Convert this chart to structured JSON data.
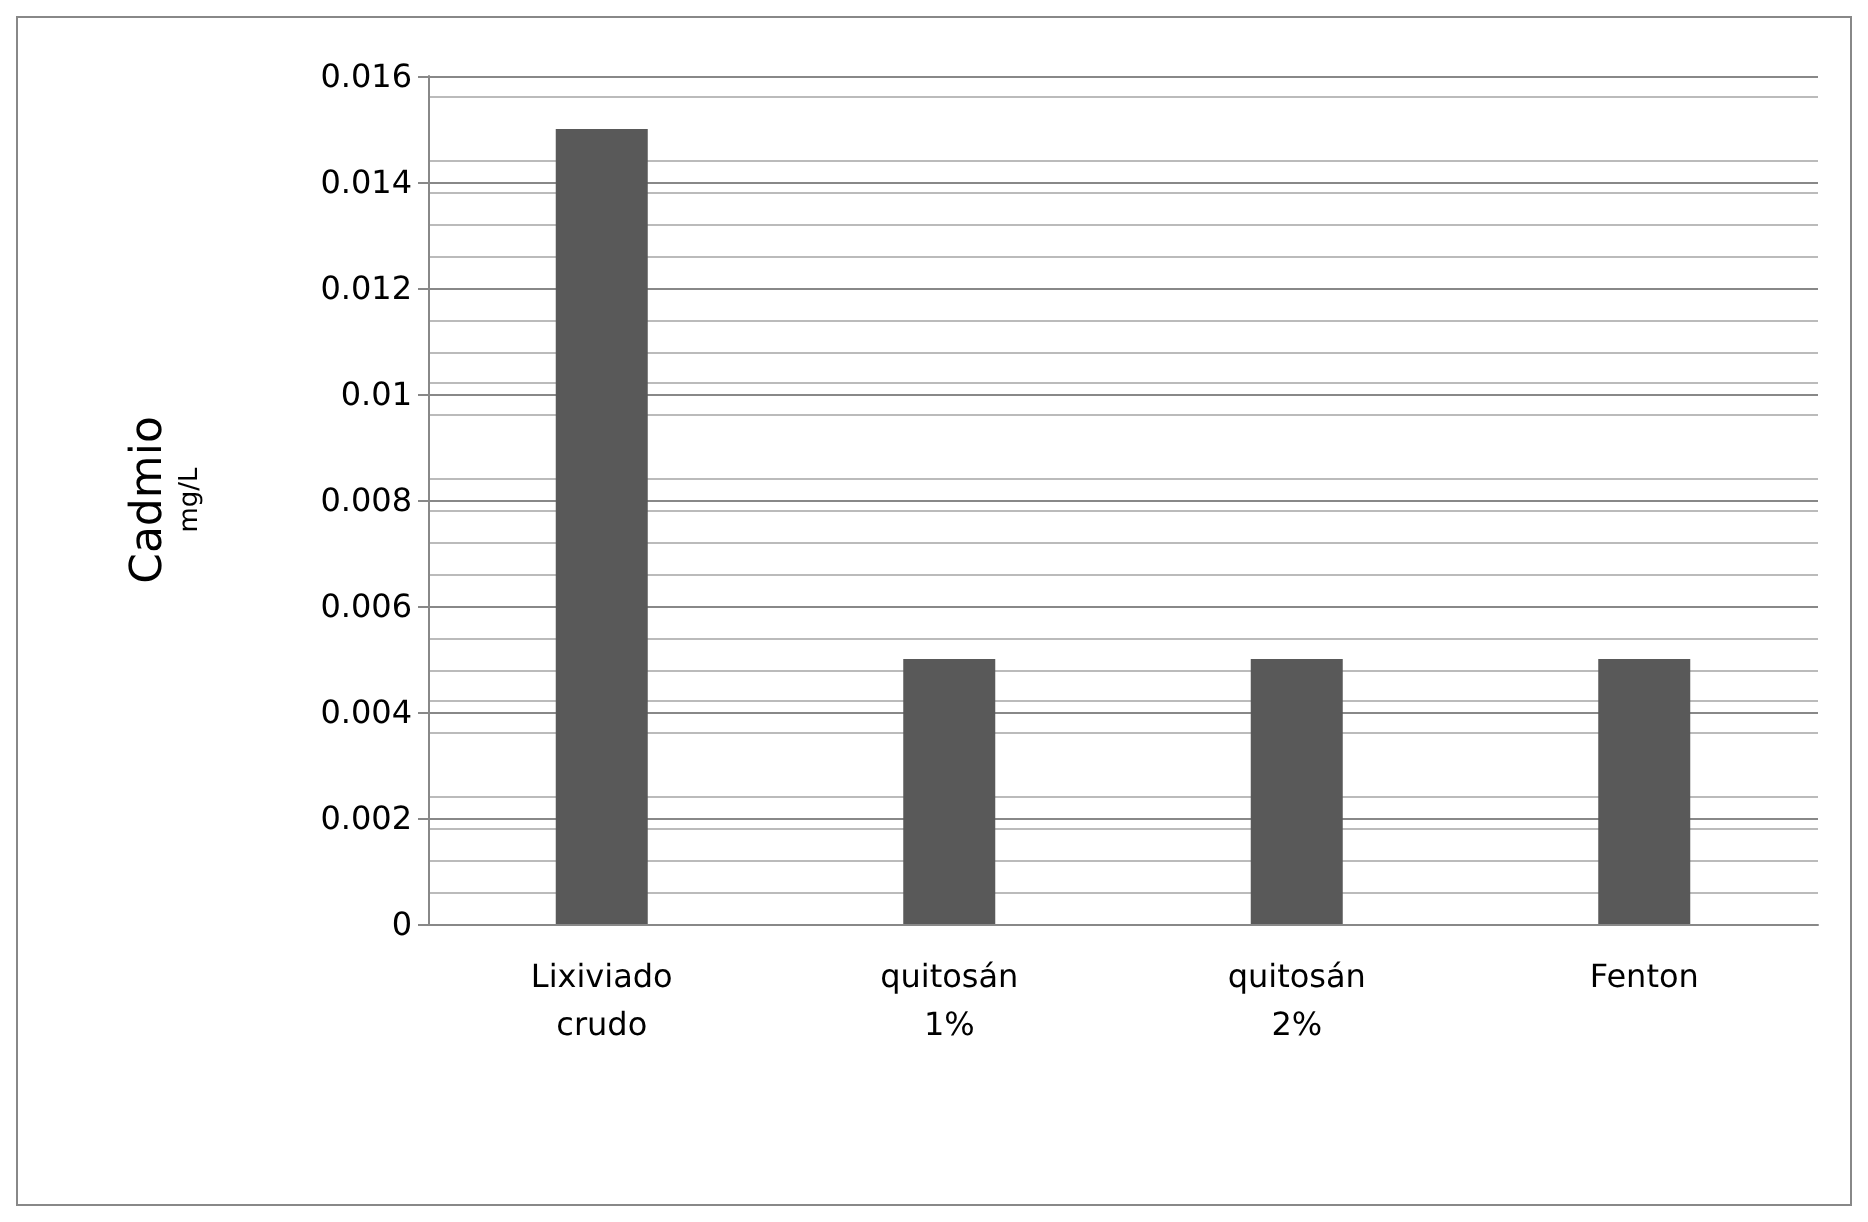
{
  "chart_data": {
    "type": "bar",
    "ylabel": "Cadmio\nmg/L",
    "categories": [
      "Lixiviado\ncrudo",
      "quitosán\n1%",
      "quitosán\n2%",
      "Fenton"
    ],
    "values": [
      0.015,
      0.005,
      0.005,
      0.005
    ],
    "color": "#595959",
    "ylim": [
      0,
      0.016
    ],
    "yticks": [
      0,
      0.002,
      0.004,
      0.006,
      0.008,
      0.01,
      0.012,
      0.014,
      0.016
    ],
    "grid": "y"
  }
}
